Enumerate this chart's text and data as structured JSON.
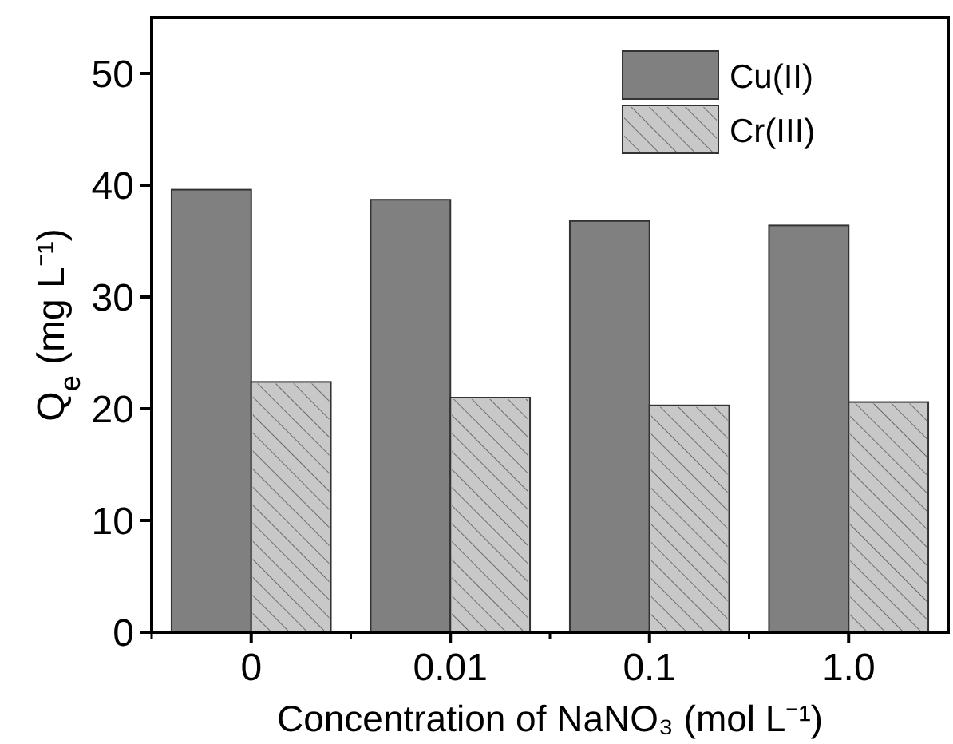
{
  "chart_data": {
    "type": "bar",
    "xlabel": "Concentration of NaNO₃ (mol L⁻¹)",
    "ylabel": "Q$_{e}$ (mg L⁻¹)",
    "categories": [
      "0",
      "0.01",
      "0.1",
      "1.0"
    ],
    "series": [
      {
        "name": "Cu(II)",
        "color": "#808080",
        "values": [
          39.6,
          38.7,
          36.8,
          36.4
        ]
      },
      {
        "name": "Cr(III)",
        "color": "#c8c8c8",
        "values": [
          22.4,
          21.0,
          20.3,
          20.6
        ]
      }
    ],
    "ylim": [
      0,
      55
    ],
    "yticks": [
      0,
      10,
      20,
      30,
      40,
      50
    ],
    "grid": false,
    "legend": "top right"
  }
}
